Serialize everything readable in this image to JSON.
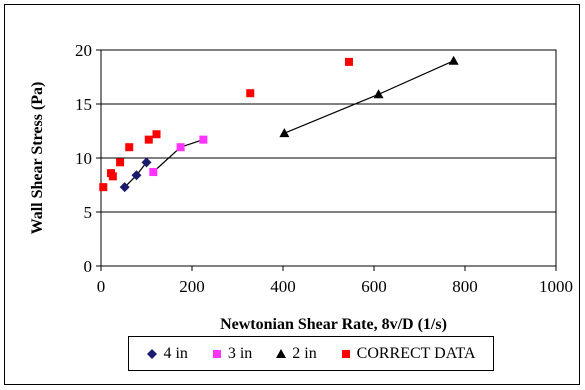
{
  "chart_data": {
    "type": "scatter",
    "xlabel": "Newtonian Shear Rate, 8v/D (1/s)",
    "ylabel": "Wall Shear Stress (Pa)",
    "xlim": [
      0,
      1000
    ],
    "ylim": [
      0,
      20
    ],
    "x_ticks": [
      "0",
      "200",
      "400",
      "600",
      "800",
      "1000"
    ],
    "y_ticks": [
      "0",
      "5",
      "10",
      "15",
      "20"
    ],
    "grid": "horizontal",
    "legend_position": "bottom",
    "series": [
      {
        "name": "4 in",
        "marker": "diamond",
        "color": "#1c1c6e",
        "trendline": true,
        "points": [
          [
            52,
            7.3
          ],
          [
            78,
            8.4
          ],
          [
            100,
            9.6
          ]
        ]
      },
      {
        "name": "3 in",
        "marker": "square",
        "color": "#ff33ff",
        "trendline": true,
        "points": [
          [
            115,
            8.7
          ],
          [
            175,
            11.0
          ],
          [
            225,
            11.7
          ]
        ]
      },
      {
        "name": "2 in",
        "marker": "triangle",
        "color": "#000000",
        "trendline": true,
        "points": [
          [
            403,
            12.3
          ],
          [
            610,
            15.9
          ],
          [
            775,
            19.0
          ]
        ]
      },
      {
        "name": "CORRECT DATA",
        "marker": "square",
        "color": "#ff0000",
        "trendline": false,
        "points": [
          [
            5,
            7.3
          ],
          [
            22,
            8.6
          ],
          [
            26,
            8.3
          ],
          [
            42,
            9.6
          ],
          [
            62,
            11.0
          ],
          [
            105,
            11.7
          ],
          [
            122,
            12.2
          ],
          [
            328,
            16.0
          ],
          [
            545,
            18.9
          ]
        ]
      }
    ]
  }
}
